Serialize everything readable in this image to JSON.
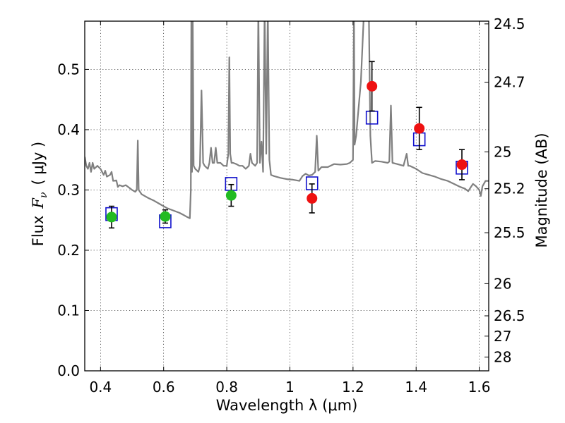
{
  "chart_data": {
    "type": "scatter",
    "xlabel": "Wavelength  λ (μm)",
    "ylabel_text": "Flux",
    "ylabel_var": "F",
    "ylabel_sub": "ν",
    "ylabel_unit": "( μJy )",
    "y2label": "Magnitude (AB)",
    "xlim": [
      0.35,
      1.63
    ],
    "ylim": [
      0.0,
      0.58
    ],
    "grid": true,
    "x_ticks": [
      {
        "value": 0.4,
        "label": "0.4"
      },
      {
        "value": 0.6,
        "label": "0.6"
      },
      {
        "value": 0.8,
        "label": "0.8"
      },
      {
        "value": 1.0,
        "label": "1"
      },
      {
        "value": 1.2,
        "label": "1.2"
      },
      {
        "value": 1.4,
        "label": "1.4"
      },
      {
        "value": 1.6,
        "label": "1.6"
      }
    ],
    "y_ticks": [
      {
        "value": 0.0,
        "label": "0.0"
      },
      {
        "value": 0.1,
        "label": "0.1"
      },
      {
        "value": 0.2,
        "label": "0.2"
      },
      {
        "value": 0.3,
        "label": "0.3"
      },
      {
        "value": 0.4,
        "label": "0.4"
      },
      {
        "value": 0.5,
        "label": "0.5"
      }
    ],
    "mag_ticks": [
      {
        "value": 24.5,
        "label": "24.5"
      },
      {
        "value": 24.7,
        "label": "24.7"
      },
      {
        "value": 25.0,
        "label": "25"
      },
      {
        "value": 25.2,
        "label": "25.2"
      },
      {
        "value": 25.5,
        "label": "25.5"
      },
      {
        "value": 26.0,
        "label": "26"
      },
      {
        "value": 26.5,
        "label": "26.5"
      },
      {
        "value": 27.0,
        "label": "27"
      },
      {
        "value": 28.0,
        "label": "28"
      }
    ],
    "colors": {
      "template": "#808080",
      "optical": "#22bb22",
      "nir": "#ee1111",
      "model": "#1111cc",
      "errorbar": "#000000"
    },
    "template_spectrum": [
      [
        0.35,
        0.355
      ],
      [
        0.355,
        0.34
      ],
      [
        0.36,
        0.335
      ],
      [
        0.365,
        0.345
      ],
      [
        0.37,
        0.33
      ],
      [
        0.375,
        0.345
      ],
      [
        0.38,
        0.335
      ],
      [
        0.39,
        0.34
      ],
      [
        0.4,
        0.335
      ],
      [
        0.41,
        0.325
      ],
      [
        0.415,
        0.332
      ],
      [
        0.42,
        0.322
      ],
      [
        0.43,
        0.325
      ],
      [
        0.435,
        0.33
      ],
      [
        0.44,
        0.315
      ],
      [
        0.45,
        0.316
      ],
      [
        0.455,
        0.305
      ],
      [
        0.46,
        0.308
      ],
      [
        0.47,
        0.306
      ],
      [
        0.48,
        0.308
      ],
      [
        0.49,
        0.304
      ],
      [
        0.5,
        0.3
      ],
      [
        0.51,
        0.297
      ],
      [
        0.515,
        0.3
      ],
      [
        0.518,
        0.382
      ],
      [
        0.521,
        0.3
      ],
      [
        0.53,
        0.293
      ],
      [
        0.55,
        0.287
      ],
      [
        0.57,
        0.282
      ],
      [
        0.59,
        0.276
      ],
      [
        0.61,
        0.27
      ],
      [
        0.63,
        0.266
      ],
      [
        0.65,
        0.262
      ],
      [
        0.665,
        0.258
      ],
      [
        0.675,
        0.255
      ],
      [
        0.683,
        0.253
      ],
      [
        0.686,
        0.3
      ],
      [
        0.688,
        0.62
      ],
      [
        0.69,
        0.33
      ],
      [
        0.692,
        0.6
      ],
      [
        0.695,
        0.34
      ],
      [
        0.7,
        0.335
      ],
      [
        0.71,
        0.33
      ],
      [
        0.715,
        0.34
      ],
      [
        0.72,
        0.465
      ],
      [
        0.725,
        0.345
      ],
      [
        0.73,
        0.34
      ],
      [
        0.74,
        0.335
      ],
      [
        0.745,
        0.345
      ],
      [
        0.75,
        0.37
      ],
      [
        0.755,
        0.345
      ],
      [
        0.76,
        0.345
      ],
      [
        0.765,
        0.37
      ],
      [
        0.77,
        0.345
      ],
      [
        0.78,
        0.345
      ],
      [
        0.79,
        0.34
      ],
      [
        0.8,
        0.34
      ],
      [
        0.805,
        0.36
      ],
      [
        0.808,
        0.52
      ],
      [
        0.811,
        0.36
      ],
      [
        0.815,
        0.345
      ],
      [
        0.82,
        0.345
      ],
      [
        0.83,
        0.343
      ],
      [
        0.84,
        0.34
      ],
      [
        0.85,
        0.34
      ],
      [
        0.86,
        0.335
      ],
      [
        0.87,
        0.34
      ],
      [
        0.875,
        0.36
      ],
      [
        0.88,
        0.345
      ],
      [
        0.89,
        0.34
      ],
      [
        0.896,
        0.345
      ],
      [
        0.9,
        0.6
      ],
      [
        0.905,
        0.345
      ],
      [
        0.91,
        0.38
      ],
      [
        0.915,
        0.33
      ],
      [
        0.92,
        0.6
      ],
      [
        0.925,
        0.36
      ],
      [
        0.93,
        0.6
      ],
      [
        0.935,
        0.35
      ],
      [
        0.94,
        0.325
      ],
      [
        0.95,
        0.323
      ],
      [
        0.97,
        0.32
      ],
      [
        0.99,
        0.318
      ],
      [
        1.01,
        0.317
      ],
      [
        1.03,
        0.315
      ],
      [
        1.04,
        0.323
      ],
      [
        1.05,
        0.327
      ],
      [
        1.06,
        0.324
      ],
      [
        1.07,
        0.325
      ],
      [
        1.08,
        0.33
      ],
      [
        1.085,
        0.39
      ],
      [
        1.09,
        0.332
      ],
      [
        1.1,
        0.338
      ],
      [
        1.12,
        0.338
      ],
      [
        1.14,
        0.343
      ],
      [
        1.16,
        0.342
      ],
      [
        1.18,
        0.343
      ],
      [
        1.19,
        0.345
      ],
      [
        1.2,
        0.35
      ],
      [
        1.203,
        0.6
      ],
      [
        1.205,
        0.375
      ],
      [
        1.21,
        0.39
      ],
      [
        1.225,
        0.48
      ],
      [
        1.235,
        0.6
      ],
      [
        1.25,
        0.6
      ],
      [
        1.255,
        0.39
      ],
      [
        1.26,
        0.345
      ],
      [
        1.27,
        0.348
      ],
      [
        1.29,
        0.347
      ],
      [
        1.31,
        0.345
      ],
      [
        1.315,
        0.347
      ],
      [
        1.32,
        0.44
      ],
      [
        1.325,
        0.345
      ],
      [
        1.34,
        0.343
      ],
      [
        1.36,
        0.34
      ],
      [
        1.37,
        0.36
      ],
      [
        1.375,
        0.34
      ],
      [
        1.38,
        0.34
      ],
      [
        1.4,
        0.335
      ],
      [
        1.42,
        0.328
      ],
      [
        1.44,
        0.325
      ],
      [
        1.46,
        0.322
      ],
      [
        1.48,
        0.318
      ],
      [
        1.5,
        0.315
      ],
      [
        1.52,
        0.31
      ],
      [
        1.54,
        0.305
      ],
      [
        1.555,
        0.302
      ],
      [
        1.565,
        0.298
      ],
      [
        1.57,
        0.302
      ],
      [
        1.58,
        0.31
      ],
      [
        1.59,
        0.306
      ],
      [
        1.6,
        0.3
      ],
      [
        1.605,
        0.29
      ],
      [
        1.61,
        0.306
      ],
      [
        1.62,
        0.315
      ],
      [
        1.63,
        0.315
      ]
    ],
    "observed": [
      {
        "x": 0.435,
        "y": 0.255,
        "err": 0.018,
        "band": "optical"
      },
      {
        "x": 0.605,
        "y": 0.256,
        "err": 0.011,
        "band": "optical"
      },
      {
        "x": 0.814,
        "y": 0.291,
        "err": 0.018,
        "band": "optical"
      },
      {
        "x": 1.07,
        "y": 0.286,
        "err": 0.024,
        "band": "nir"
      },
      {
        "x": 1.26,
        "y": 0.472,
        "err": 0.041,
        "band": "nir"
      },
      {
        "x": 1.41,
        "y": 0.402,
        "err": 0.035,
        "band": "nir"
      },
      {
        "x": 1.545,
        "y": 0.342,
        "err": 0.025,
        "band": "nir"
      }
    ],
    "model_points": [
      {
        "x": 0.435,
        "y": 0.26
      },
      {
        "x": 0.605,
        "y": 0.248
      },
      {
        "x": 0.814,
        "y": 0.31
      },
      {
        "x": 1.07,
        "y": 0.311
      },
      {
        "x": 1.26,
        "y": 0.42
      },
      {
        "x": 1.41,
        "y": 0.384
      },
      {
        "x": 1.545,
        "y": 0.337
      }
    ]
  }
}
